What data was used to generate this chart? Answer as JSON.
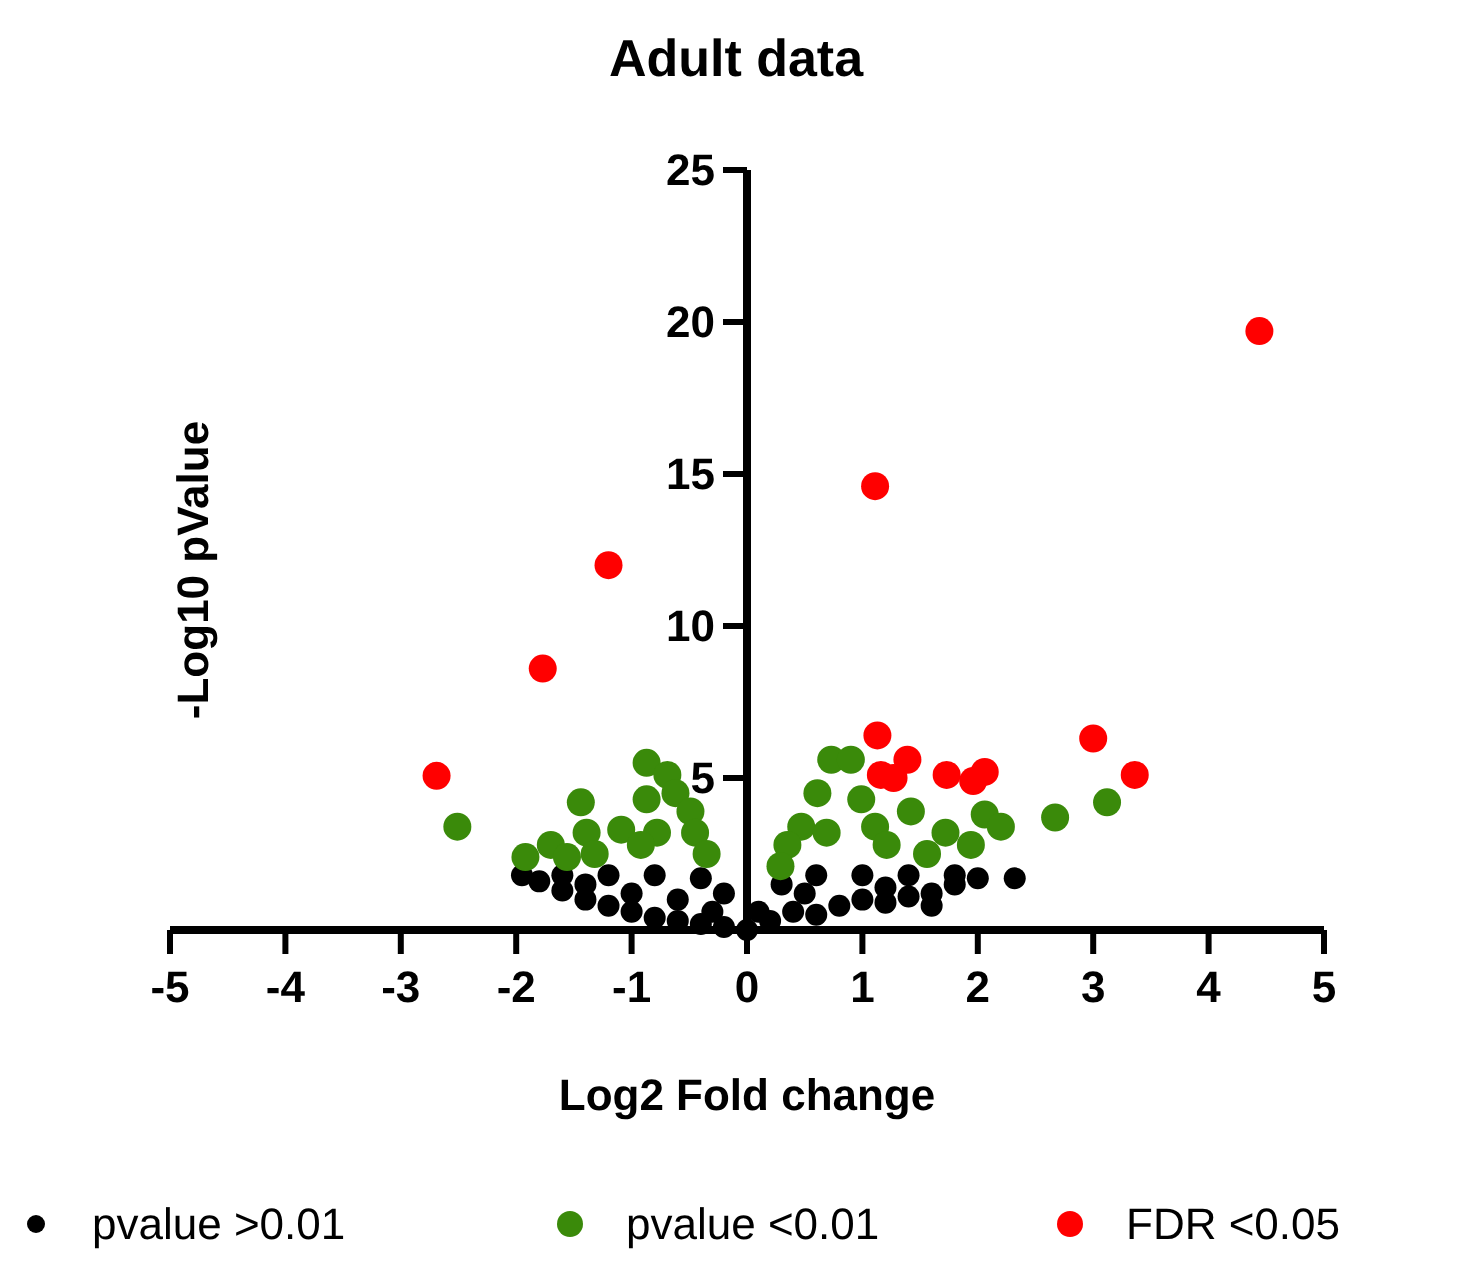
{
  "chart_data": {
    "type": "scatter",
    "title": "Adult data",
    "xlabel": "Log2 Fold change",
    "ylabel": "-Log10 pValue",
    "xlim": [
      -5,
      5
    ],
    "ylim": [
      0,
      25
    ],
    "xticks": [
      -5,
      -4,
      -3,
      -2,
      -1,
      0,
      1,
      2,
      3,
      4,
      5
    ],
    "yticks": [
      5,
      10,
      15,
      20,
      25
    ],
    "legend": "bottom",
    "marker": "circle",
    "grid": false,
    "series": [
      {
        "name": "pvalue >0.01",
        "color": "#000000",
        "x": [
          -1.95,
          -1.8,
          -1.6,
          -1.4,
          -1.2,
          -1.0,
          -0.8,
          -0.6,
          -0.4,
          -0.2,
          0,
          0.2,
          0.4,
          0.6,
          0.8,
          1.0,
          1.2,
          1.4,
          1.6,
          1.8,
          2.0,
          2.32,
          -1.6,
          -1.2,
          -0.8,
          -0.4,
          -0.2,
          0.1,
          0.3,
          0.6,
          1.0,
          1.4,
          1.8,
          -1.0,
          -0.6,
          0.5,
          1.2,
          1.6,
          -1.4,
          -0.3
        ],
        "values": [
          1.8,
          1.6,
          1.3,
          1.0,
          0.8,
          0.6,
          0.4,
          0.3,
          0.2,
          0.1,
          0,
          0.3,
          0.6,
          0.5,
          0.8,
          1.0,
          0.9,
          1.1,
          1.2,
          1.5,
          1.7,
          1.7,
          1.8,
          1.8,
          1.8,
          1.7,
          1.2,
          0.6,
          1.5,
          1.8,
          1.8,
          1.8,
          1.8,
          1.2,
          1.0,
          1.2,
          1.4,
          0.8,
          1.5,
          0.6
        ]
      },
      {
        "name": "pvalue <0.01",
        "color": "#3a8a0a",
        "x": [
          -2.51,
          -0.87,
          -0.69,
          -1.44,
          -1.39,
          -1.09,
          -1.7,
          -1.92,
          -0.87,
          -0.62,
          -0.49,
          -0.45,
          -0.78,
          -0.92,
          -1.32,
          -0.35,
          -1.56,
          0.73,
          0.9,
          0.61,
          0.99,
          1.42,
          2.06,
          2.2,
          2.67,
          3.12,
          1.72,
          1.94,
          0.47,
          0.35,
          0.69,
          1.11,
          1.21,
          1.56,
          0.29
        ],
        "values": [
          3.4,
          5.5,
          5.1,
          4.2,
          3.2,
          3.3,
          2.8,
          2.4,
          4.3,
          4.5,
          3.9,
          3.2,
          3.2,
          2.8,
          2.5,
          2.5,
          2.4,
          5.6,
          5.6,
          4.5,
          4.3,
          3.9,
          3.8,
          3.4,
          3.7,
          4.2,
          3.2,
          2.8,
          3.4,
          2.8,
          3.2,
          3.4,
          2.8,
          2.5,
          2.1
        ]
      },
      {
        "name": "FDR <0.05",
        "color": "#ff0000",
        "x": [
          -2.69,
          -1.2,
          -1.77,
          1.11,
          4.44,
          1.13,
          1.16,
          1.27,
          1.39,
          1.73,
          1.96,
          2.06,
          3.0,
          3.36
        ],
        "values": [
          5.07,
          12.0,
          8.6,
          14.6,
          19.7,
          6.4,
          5.1,
          5.0,
          5.6,
          5.1,
          4.9,
          5.2,
          6.3,
          5.1
        ]
      }
    ]
  }
}
